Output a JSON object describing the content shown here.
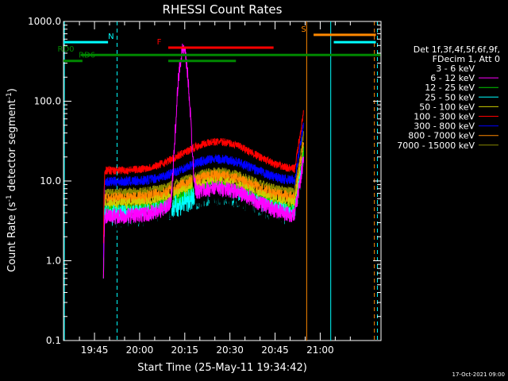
{
  "chart_data": {
    "type": "line",
    "title": "RHESSI Count Rates",
    "xlabel": "Start Time (25-May-11 19:34:42)",
    "ylabel_main": "Count Rate (s",
    "ylabel_sup1": "-1",
    "ylabel_mid": " detector segment",
    "ylabel_sup2": "-1",
    "ylabel_end": ")",
    "yscale": "log",
    "ylim": [
      0.1,
      1000
    ],
    "xlim_minutes": [
      34.7,
      78.5
    ],
    "y_ticks": [
      {
        "v": 0.1,
        "label": "0.1"
      },
      {
        "v": 1,
        "label": "1.0"
      },
      {
        "v": 10,
        "label": "10.0"
      },
      {
        "v": 100,
        "label": "100.0"
      },
      {
        "v": 1000,
        "label": "1000.0"
      }
    ],
    "x_ticks": [
      {
        "m": 45,
        "label": "19:45"
      },
      {
        "m": 60,
        "label": "20:00"
      },
      {
        "m": 75,
        "label": "20:15"
      },
      {
        "m": 90,
        "label": "20:30"
      },
      {
        "m": 105,
        "label": "20:45"
      },
      {
        "m": 120,
        "label": "21:00"
      }
    ],
    "legend": {
      "header1": "Det 1f,3f,4f,5f,6f,9f,",
      "header2": "FDecim 1, Att 0",
      "placement": "right"
    },
    "series": [
      {
        "name": "3 - 6 keV",
        "color": "#000000",
        "base": 2.8,
        "bump": 3.8,
        "flare": 240,
        "noise": 0.14
      },
      {
        "name": "6 - 12 keV",
        "color": "#ff00ff",
        "base": 3.6,
        "bump": 4.5,
        "flare": 430,
        "noise": 0.1
      },
      {
        "name": "12 - 25 keV",
        "color": "#00cc00",
        "base": 4.1,
        "bump": 4.0,
        "flare": 0,
        "noise": 0.09
      },
      {
        "name": "25 - 50 keV",
        "color": "#00ffff",
        "base": 3.6,
        "bump": 3.2,
        "flare": 0,
        "noise": 0.14
      },
      {
        "name": "50 - 100 keV",
        "color": "#cccc00",
        "base": 5.0,
        "bump": 4.5,
        "flare": 0,
        "noise": 0.08
      },
      {
        "name": "100 - 300 keV",
        "color": "#ff0000",
        "base": 13.5,
        "bump": 17.5,
        "flare": 0,
        "noise": 0.05
      },
      {
        "name": "300 - 800 keV",
        "color": "#0000ff",
        "base": 9.8,
        "bump": 9.0,
        "flare": 0,
        "noise": 0.06
      },
      {
        "name": "800 - 7000 keV",
        "color": "#ff8800",
        "base": 6.0,
        "bump": 5.5,
        "flare": 0,
        "noise": 0.08
      },
      {
        "name": "7000 - 15000 keV",
        "color": "#888800",
        "base": 7.2,
        "bump": 6.0,
        "flare": 0,
        "noise": 0.05
      }
    ],
    "data_window_minutes": [
      48.0,
      114.5
    ],
    "flags": [
      {
        "label": "N",
        "color": "#00ffff",
        "y": 550,
        "from": 34.7,
        "to": 49.5,
        "label_at": 50.5
      },
      {
        "label": "N",
        "color": "#00ffff",
        "y": 550,
        "from": 124.5,
        "to": 138.5,
        "label_at": 0
      },
      {
        "label": "RD0",
        "color": "#008800",
        "y": 380,
        "from": 40.5,
        "to": 140,
        "label_at": 35.5
      },
      {
        "label": "RD6",
        "color": "#008800",
        "y": 320,
        "from": 34.7,
        "to": 41.0,
        "label_at": 42.5
      },
      {
        "label": "RD6",
        "color": "#008800",
        "y": 320,
        "from": 69.5,
        "to": 92.0,
        "label_at": 0
      },
      {
        "label": "F",
        "color": "#ff0000",
        "y": 470,
        "from": 69.5,
        "to": 104.5,
        "label_at": 66.5
      },
      {
        "label": "S",
        "color": "#ff8800",
        "y": 680,
        "from": 117.8,
        "to": 138.5,
        "label_at": 114.5
      }
    ],
    "vlines": [
      {
        "m": 35.0,
        "color": "#00ffff",
        "dashed": false
      },
      {
        "m": 52.5,
        "color": "#00ffff",
        "dashed": true
      },
      {
        "m": 115.5,
        "color": "#ff8800",
        "dashed": false
      },
      {
        "m": 123.5,
        "color": "#00ffff",
        "dashed": false
      },
      {
        "m": 138.0,
        "color": "#ff8800",
        "dashed": true
      },
      {
        "m": 139.0,
        "color": "#00ffff",
        "dashed": true
      }
    ],
    "footer_date": "17-Oct-2021 09:00"
  }
}
